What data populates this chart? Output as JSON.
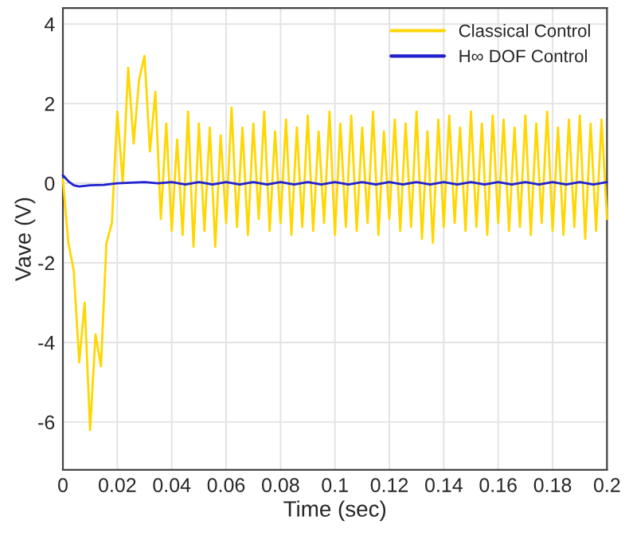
{
  "chart_data": {
    "type": "line",
    "xlabel": "Time (sec)",
    "ylabel": "Vave (V)",
    "xlim": [
      0,
      0.2
    ],
    "ylim": [
      -7.2,
      4.4
    ],
    "xticks": [
      0,
      0.02,
      0.04,
      0.06,
      0.08,
      0.1,
      0.12,
      0.14,
      0.16,
      0.18,
      0.2
    ],
    "yticks": [
      -6,
      -4,
      -2,
      0,
      2,
      4
    ],
    "grid": true,
    "legend": "top right",
    "marker": "none",
    "line_style": "solid",
    "series": [
      {
        "name": "Classical Control",
        "color": "#ffd700",
        "x": [
          0,
          0.002,
          0.004,
          0.006,
          0.008,
          0.01,
          0.012,
          0.014,
          0.016,
          0.018,
          0.02,
          0.022,
          0.024,
          0.026,
          0.028,
          0.03,
          0.032,
          0.034,
          0.036,
          0.038,
          0.04,
          0.042,
          0.044,
          0.046,
          0.048,
          0.05,
          0.052,
          0.054,
          0.056,
          0.058,
          0.06,
          0.062,
          0.064,
          0.066,
          0.068,
          0.07,
          0.072,
          0.074,
          0.076,
          0.078,
          0.08,
          0.082,
          0.084,
          0.086,
          0.088,
          0.09,
          0.092,
          0.094,
          0.096,
          0.098,
          0.1,
          0.102,
          0.104,
          0.106,
          0.108,
          0.11,
          0.112,
          0.114,
          0.116,
          0.118,
          0.12,
          0.122,
          0.124,
          0.126,
          0.128,
          0.13,
          0.132,
          0.134,
          0.136,
          0.138,
          0.14,
          0.142,
          0.144,
          0.146,
          0.148,
          0.15,
          0.152,
          0.154,
          0.156,
          0.158,
          0.16,
          0.162,
          0.164,
          0.166,
          0.168,
          0.17,
          0.172,
          0.174,
          0.176,
          0.178,
          0.18,
          0.182,
          0.184,
          0.186,
          0.188,
          0.19,
          0.192,
          0.194,
          0.196,
          0.198,
          0.2
        ],
        "values": [
          0.1,
          -1.5,
          -2.2,
          -4.5,
          -3.0,
          -6.2,
          -3.8,
          -4.6,
          -1.5,
          -1.0,
          1.8,
          0.0,
          2.9,
          1.0,
          2.6,
          3.2,
          0.8,
          2.3,
          -0.9,
          1.5,
          -1.2,
          1.1,
          -1.3,
          1.8,
          -1.6,
          1.5,
          -1.2,
          1.4,
          -1.6,
          1.2,
          -1.0,
          1.9,
          -1.1,
          1.4,
          -1.3,
          1.5,
          -0.9,
          1.8,
          -1.2,
          1.3,
          -1.0,
          1.6,
          -1.3,
          1.4,
          -1.1,
          1.7,
          -1.2,
          1.3,
          -1.0,
          1.8,
          -1.3,
          1.5,
          -1.1,
          1.7,
          -1.2,
          1.4,
          -1.0,
          1.8,
          -1.3,
          1.3,
          -0.9,
          1.6,
          -1.2,
          1.5,
          -1.1,
          1.8,
          -1.4,
          1.3,
          -1.5,
          1.6,
          -1.1,
          1.7,
          -1.0,
          1.4,
          -1.2,
          1.8,
          -1.1,
          1.5,
          -1.3,
          1.7,
          -1.0,
          1.6,
          -1.2,
          1.4,
          -1.1,
          1.7,
          -1.3,
          1.5,
          -1.0,
          1.8,
          -1.2,
          1.4,
          -1.3,
          1.6,
          -1.1,
          1.7,
          -1.4,
          1.5,
          -1.2,
          1.6,
          -0.9
        ]
      },
      {
        "name": "H∞ DOF Control",
        "color": "#1f1fd0",
        "x": [
          0,
          0.002,
          0.004,
          0.006,
          0.01,
          0.015,
          0.02,
          0.03,
          0.035,
          0.04,
          0.045,
          0.05,
          0.055,
          0.06,
          0.065,
          0.07,
          0.075,
          0.08,
          0.085,
          0.09,
          0.095,
          0.1,
          0.105,
          0.11,
          0.115,
          0.12,
          0.125,
          0.13,
          0.135,
          0.14,
          0.145,
          0.15,
          0.155,
          0.16,
          0.165,
          0.17,
          0.175,
          0.18,
          0.185,
          0.19,
          0.195,
          0.2
        ],
        "values": [
          0.2,
          0.05,
          -0.05,
          -0.08,
          -0.05,
          -0.04,
          0.0,
          0.03,
          0.0,
          0.03,
          -0.03,
          0.03,
          -0.03,
          0.03,
          -0.03,
          0.03,
          -0.03,
          0.03,
          -0.03,
          0.03,
          -0.03,
          0.03,
          -0.03,
          0.03,
          -0.03,
          0.03,
          -0.03,
          0.03,
          -0.03,
          0.03,
          -0.03,
          0.03,
          -0.03,
          0.03,
          -0.03,
          0.03,
          -0.03,
          0.03,
          -0.03,
          0.03,
          -0.03,
          0.03
        ]
      }
    ]
  }
}
